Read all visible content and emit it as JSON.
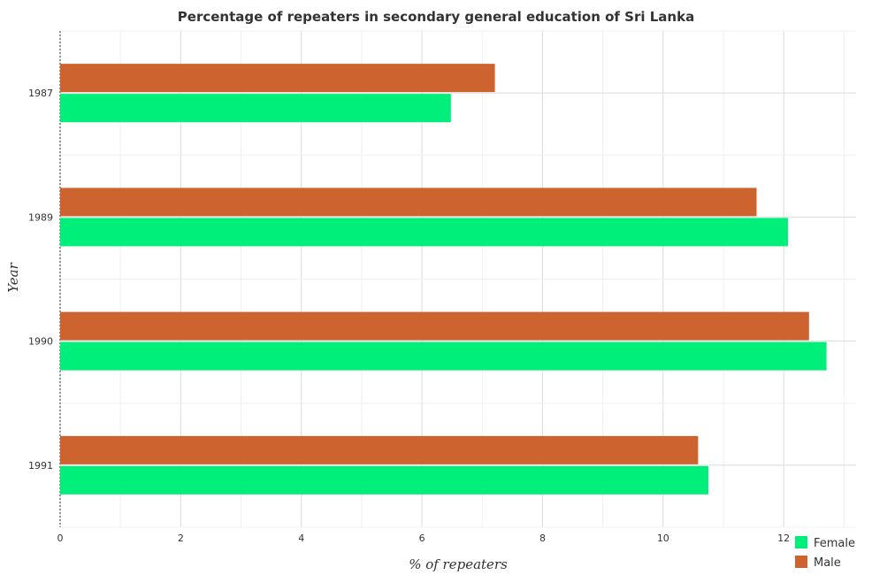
{
  "chart_data": {
    "type": "bar",
    "orientation": "horizontal",
    "title": "Percentage of repeaters in secondary general education of Sri Lanka",
    "xlabel": "% of repeaters",
    "ylabel": "Year",
    "categories": [
      "1987",
      "1989",
      "1990",
      "1991"
    ],
    "series": [
      {
        "name": "Female",
        "color": "#00ee7a",
        "values": [
          6.48,
          12.07,
          12.71,
          10.75
        ]
      },
      {
        "name": "Male",
        "color": "#cd6430",
        "values": [
          7.21,
          11.55,
          12.42,
          10.58
        ]
      }
    ],
    "xlim": [
      0,
      13.2
    ],
    "xticks": [
      "0",
      "2",
      "4",
      "6",
      "8",
      "10",
      "12"
    ],
    "grid": true,
    "legend_position": "bottom-right"
  }
}
